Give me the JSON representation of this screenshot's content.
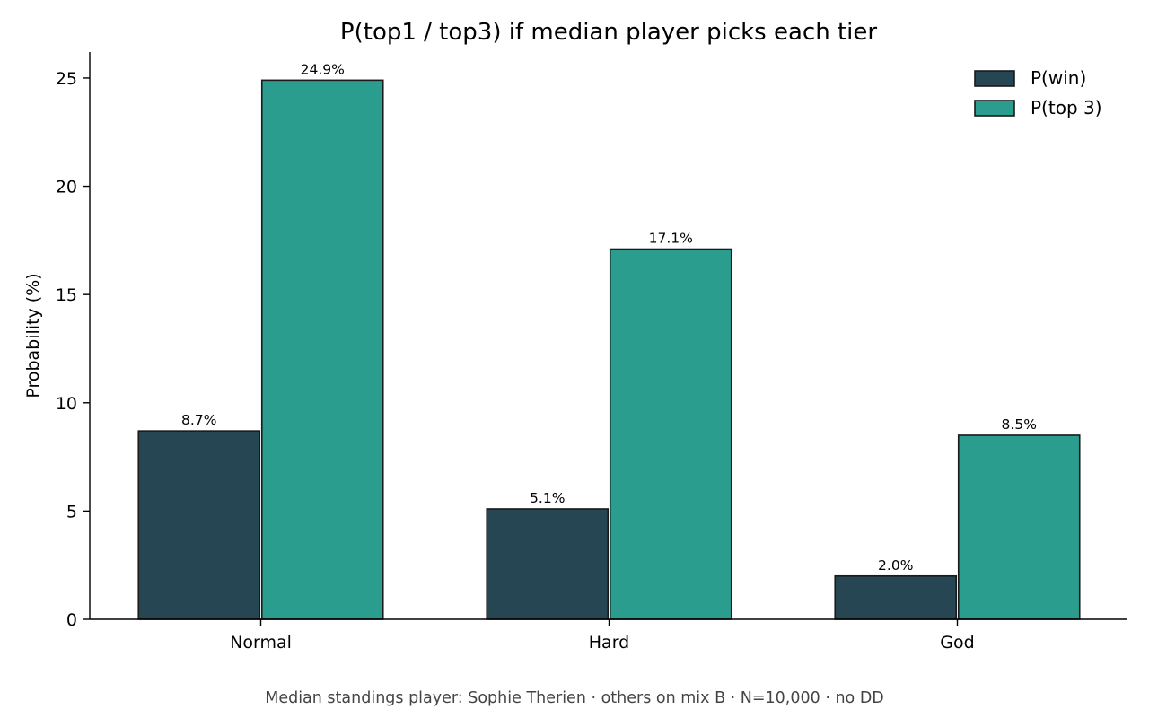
{
  "chart_data": {
    "type": "bar",
    "title": "P(top1 / top3) if median player picks each tier",
    "xlabel": "",
    "ylabel": "Probability (%)",
    "categories": [
      "Normal",
      "Hard",
      "God"
    ],
    "series": [
      {
        "name": "P(win)",
        "values": [
          8.7,
          5.1,
          2.0
        ],
        "labels": [
          "8.7%",
          "5.1%",
          "2.0%"
        ],
        "color": "#264653"
      },
      {
        "name": "P(top 3)",
        "values": [
          24.9,
          17.1,
          8.5
        ],
        "labels": [
          "24.9%",
          "17.1%",
          "8.5%"
        ],
        "color": "#2a9d8f"
      }
    ],
    "ylim": [
      0,
      26.2
    ],
    "yticks": [
      0,
      5,
      10,
      15,
      20,
      25
    ],
    "grid": false,
    "legend_position": "top-right",
    "bar_edge_color": "#1a1a1a"
  },
  "footer": "Median standings player: Sophie Therien · others on mix B · N=10,000 · no DD"
}
